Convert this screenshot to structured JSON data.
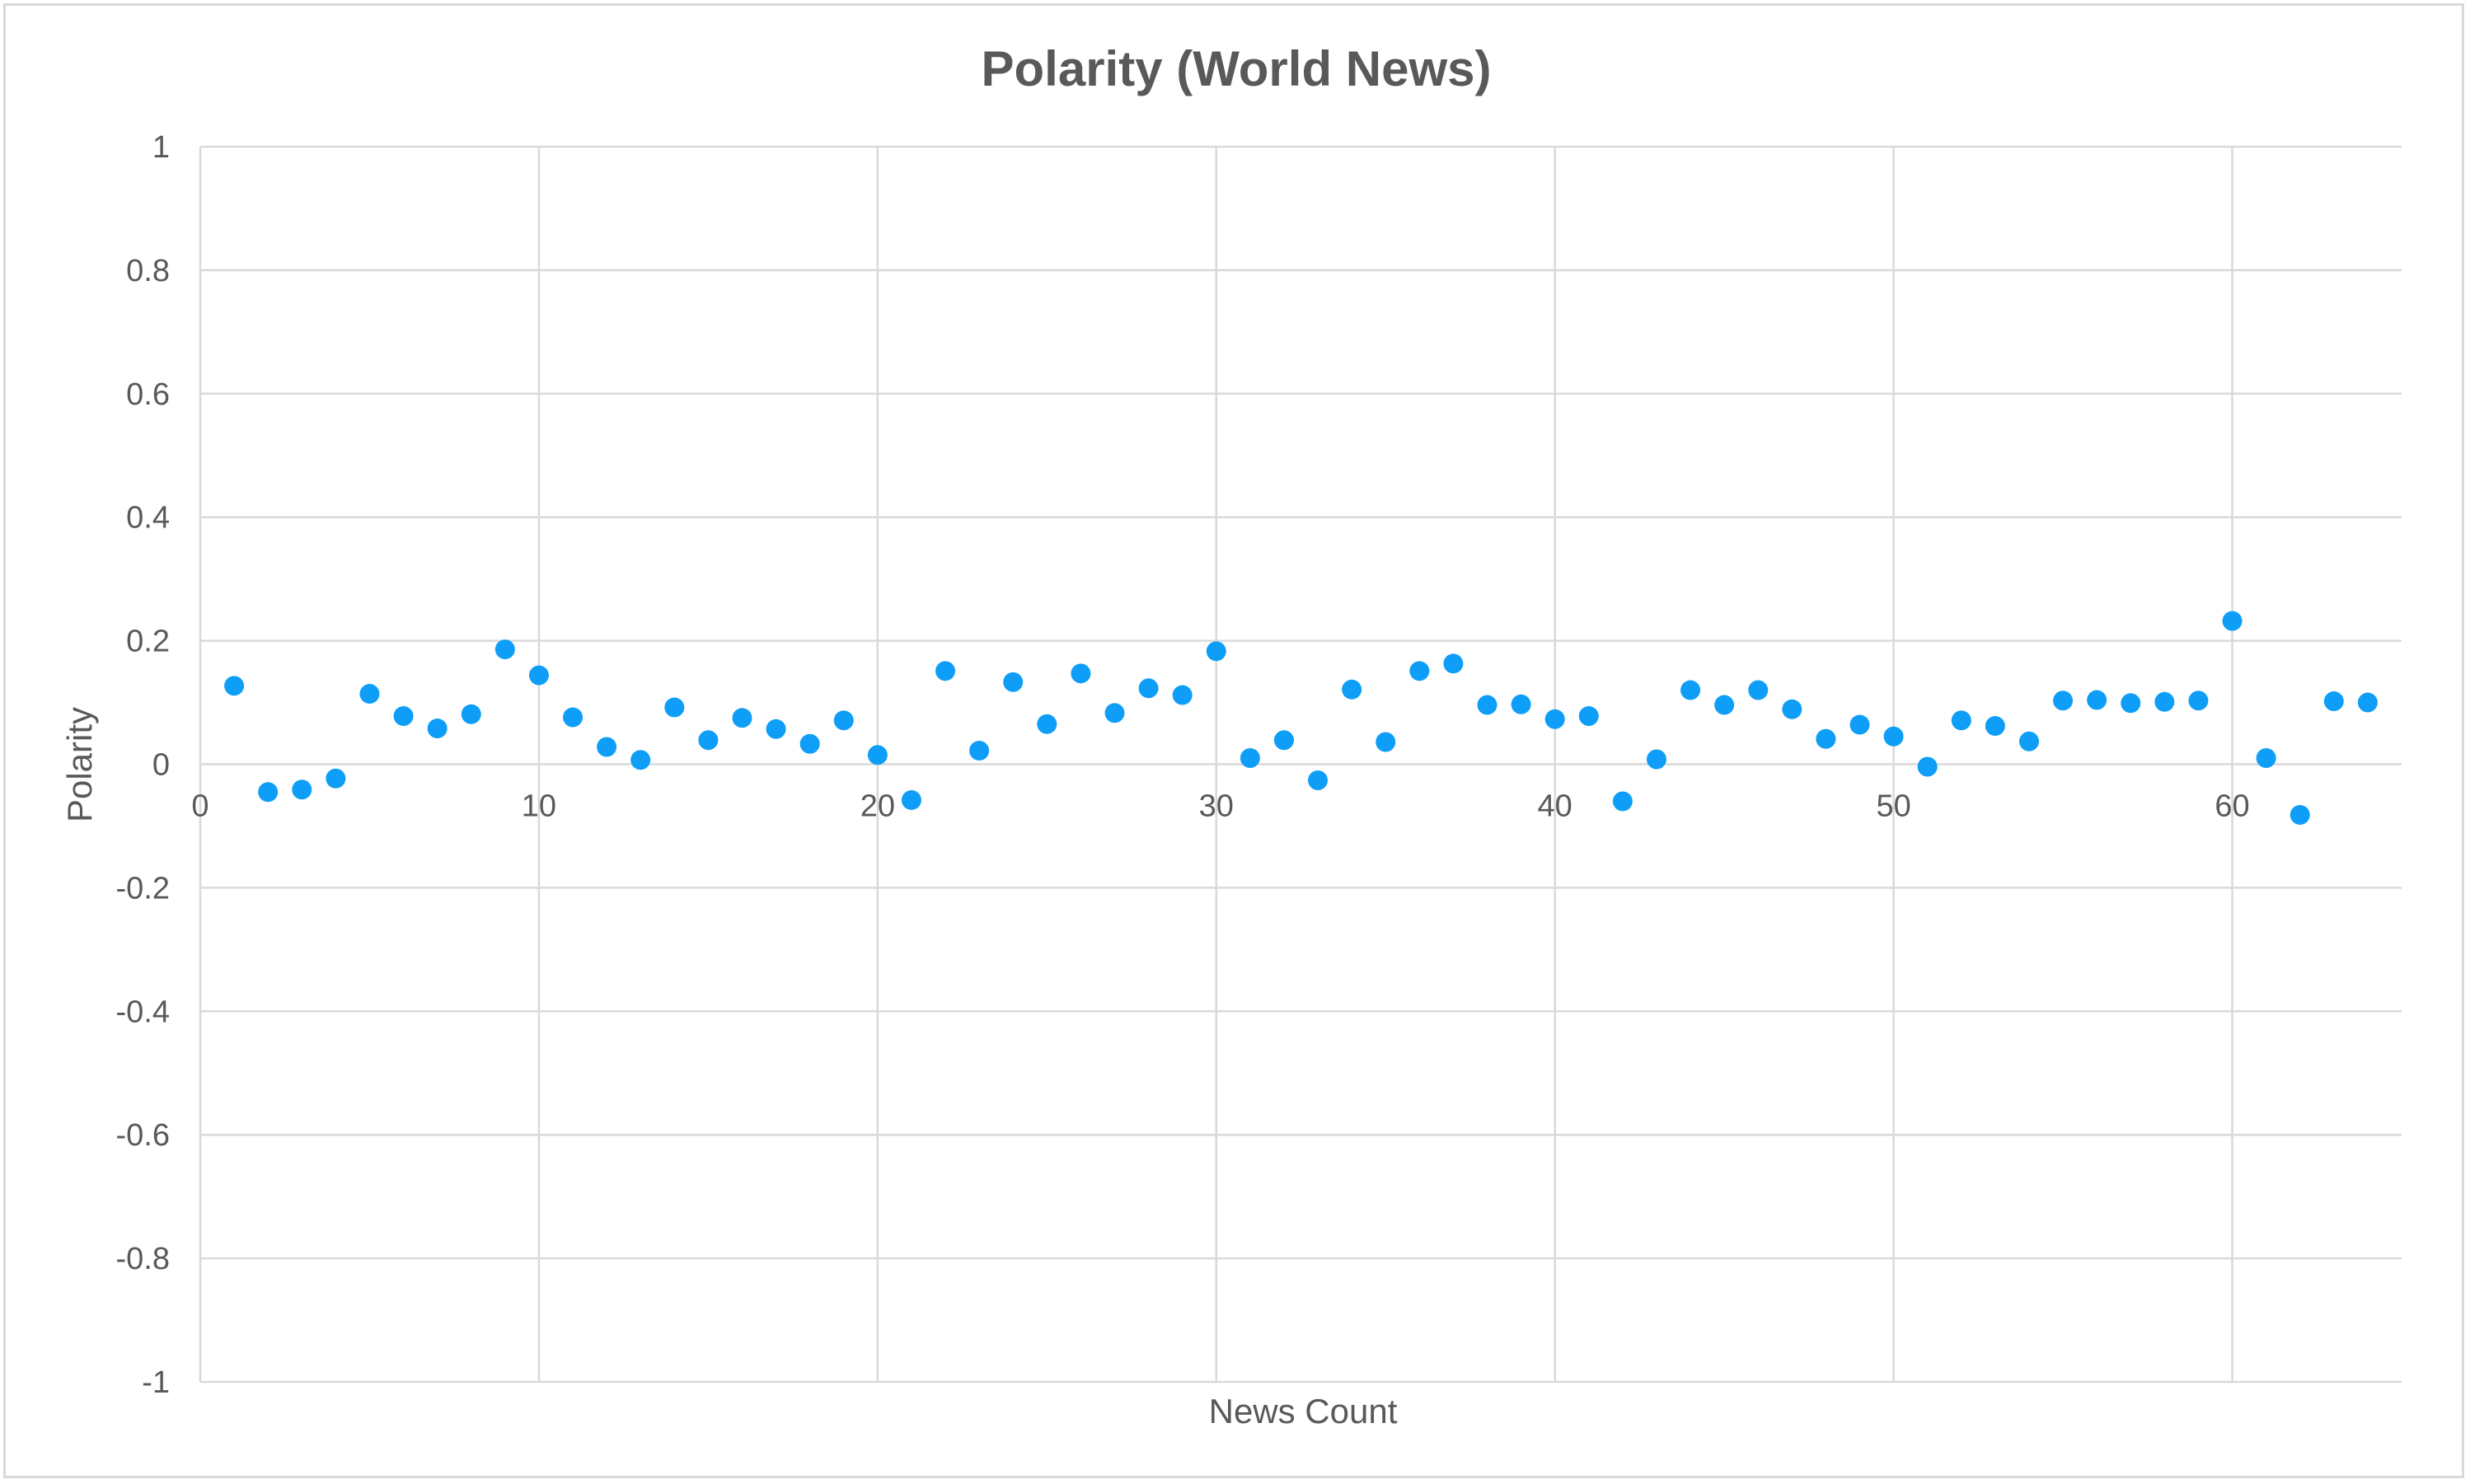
{
  "chart_data": {
    "type": "scatter",
    "title": "Polarity (World News)",
    "xlabel": "News Count",
    "ylabel": "Polarity",
    "xlim": [
      0,
      65
    ],
    "ylim": [
      -1,
      1
    ],
    "x_ticks": [
      0,
      10,
      20,
      30,
      40,
      50,
      60
    ],
    "y_ticks": [
      1,
      0.8,
      0.6,
      0.4,
      0.2,
      0,
      -0.2,
      -0.4,
      -0.6,
      -0.8,
      -1
    ],
    "grid": true,
    "legend": "none",
    "point_color": "#0f9ef7",
    "x": [
      1,
      2,
      3,
      4,
      5,
      6,
      7,
      8,
      9,
      10,
      11,
      12,
      13,
      14,
      15,
      16,
      17,
      18,
      19,
      20,
      21,
      22,
      23,
      24,
      25,
      26,
      27,
      28,
      29,
      30,
      31,
      32,
      33,
      34,
      35,
      36,
      37,
      38,
      39,
      40,
      41,
      42,
      43,
      44,
      45,
      46,
      47,
      48,
      49,
      50,
      51,
      52,
      53,
      54,
      55,
      56,
      57,
      58,
      59,
      60,
      61,
      62,
      63,
      64
    ],
    "y": [
      0.127,
      -0.045,
      -0.041,
      -0.023,
      0.114,
      0.078,
      0.058,
      0.081,
      0.186,
      0.144,
      0.076,
      0.028,
      0.007,
      0.092,
      0.039,
      0.075,
      0.057,
      0.033,
      0.071,
      0.015,
      -0.058,
      0.151,
      0.022,
      0.133,
      0.065,
      0.147,
      0.083,
      0.123,
      0.112,
      0.183,
      0.01,
      0.039,
      -0.026,
      0.121,
      0.036,
      0.151,
      0.163,
      0.096,
      0.097,
      0.073,
      0.078,
      -0.06,
      0.008,
      0.12,
      0.096,
      0.12,
      0.089,
      0.041,
      0.064,
      0.045,
      -0.004,
      0.071,
      0.062,
      0.037,
      0.103,
      0.104,
      0.099,
      0.101,
      0.103,
      0.232,
      0.01,
      -0.082,
      0.102,
      0.1
    ]
  }
}
